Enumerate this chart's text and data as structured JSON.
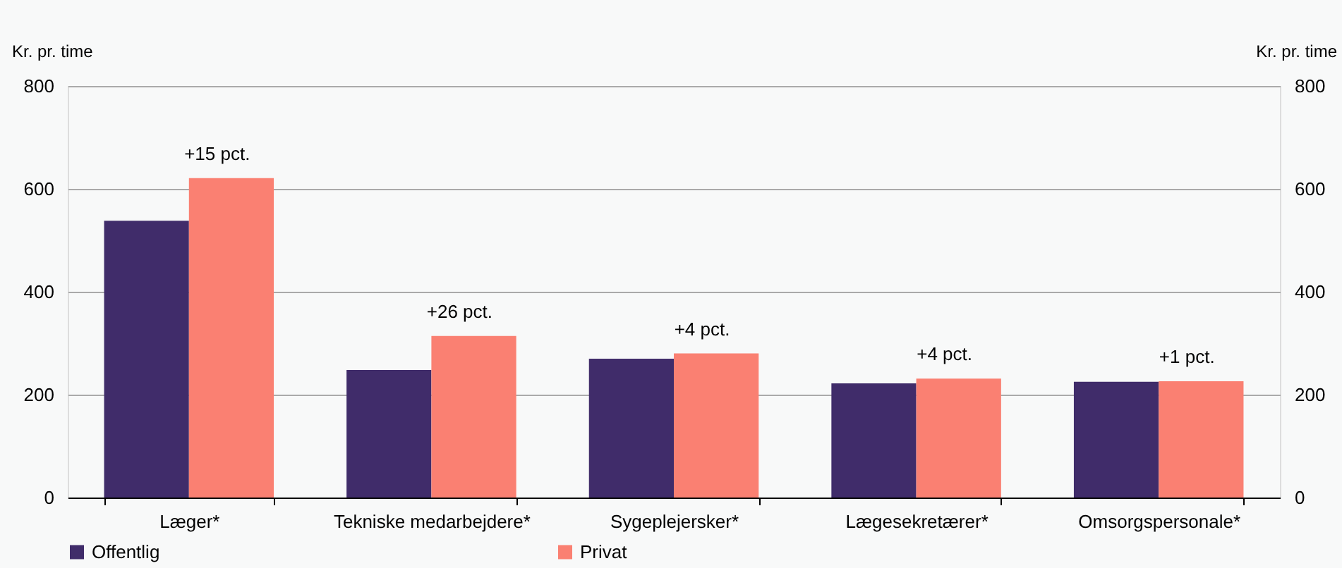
{
  "chart_data": {
    "type": "bar",
    "ylabel": "Kr. pr. time",
    "y2label": "Kr. pr. time",
    "categories": [
      "Læger*",
      "Tekniske medarbejdere*",
      "Sygeplejersker*",
      "Lægesekretærer*",
      "Omsorgspersonale*"
    ],
    "series": [
      {
        "name": "Offentlig",
        "color": "#402c6a",
        "values": [
          538,
          248,
          270,
          222,
          225
        ]
      },
      {
        "name": "Privat",
        "color": "#fa8072",
        "values": [
          621,
          314,
          280,
          231,
          226
        ]
      }
    ],
    "ylim": [
      0,
      800
    ],
    "yticks": [
      0,
      200,
      400,
      600,
      800
    ],
    "y2lim": [
      0,
      800
    ],
    "y2ticks": [
      0,
      200,
      400,
      600,
      800
    ],
    "annotations": [
      {
        "text": "+15 pct.",
        "x": "Læger*",
        "y": 621
      },
      {
        "text": "+26 pct.",
        "x": "Tekniske medarbejdere*",
        "y": 314
      },
      {
        "text": "+4 pct.",
        "x": "Sygeplejersker*",
        "y": 280
      },
      {
        "text": "+4 pct.",
        "x": "Lægesekretærer*",
        "y": 231
      },
      {
        "text": "+1 pct.",
        "x": "Omsorgspersonale*",
        "y": 226
      }
    ],
    "grid": "y",
    "legend": "bottom"
  }
}
